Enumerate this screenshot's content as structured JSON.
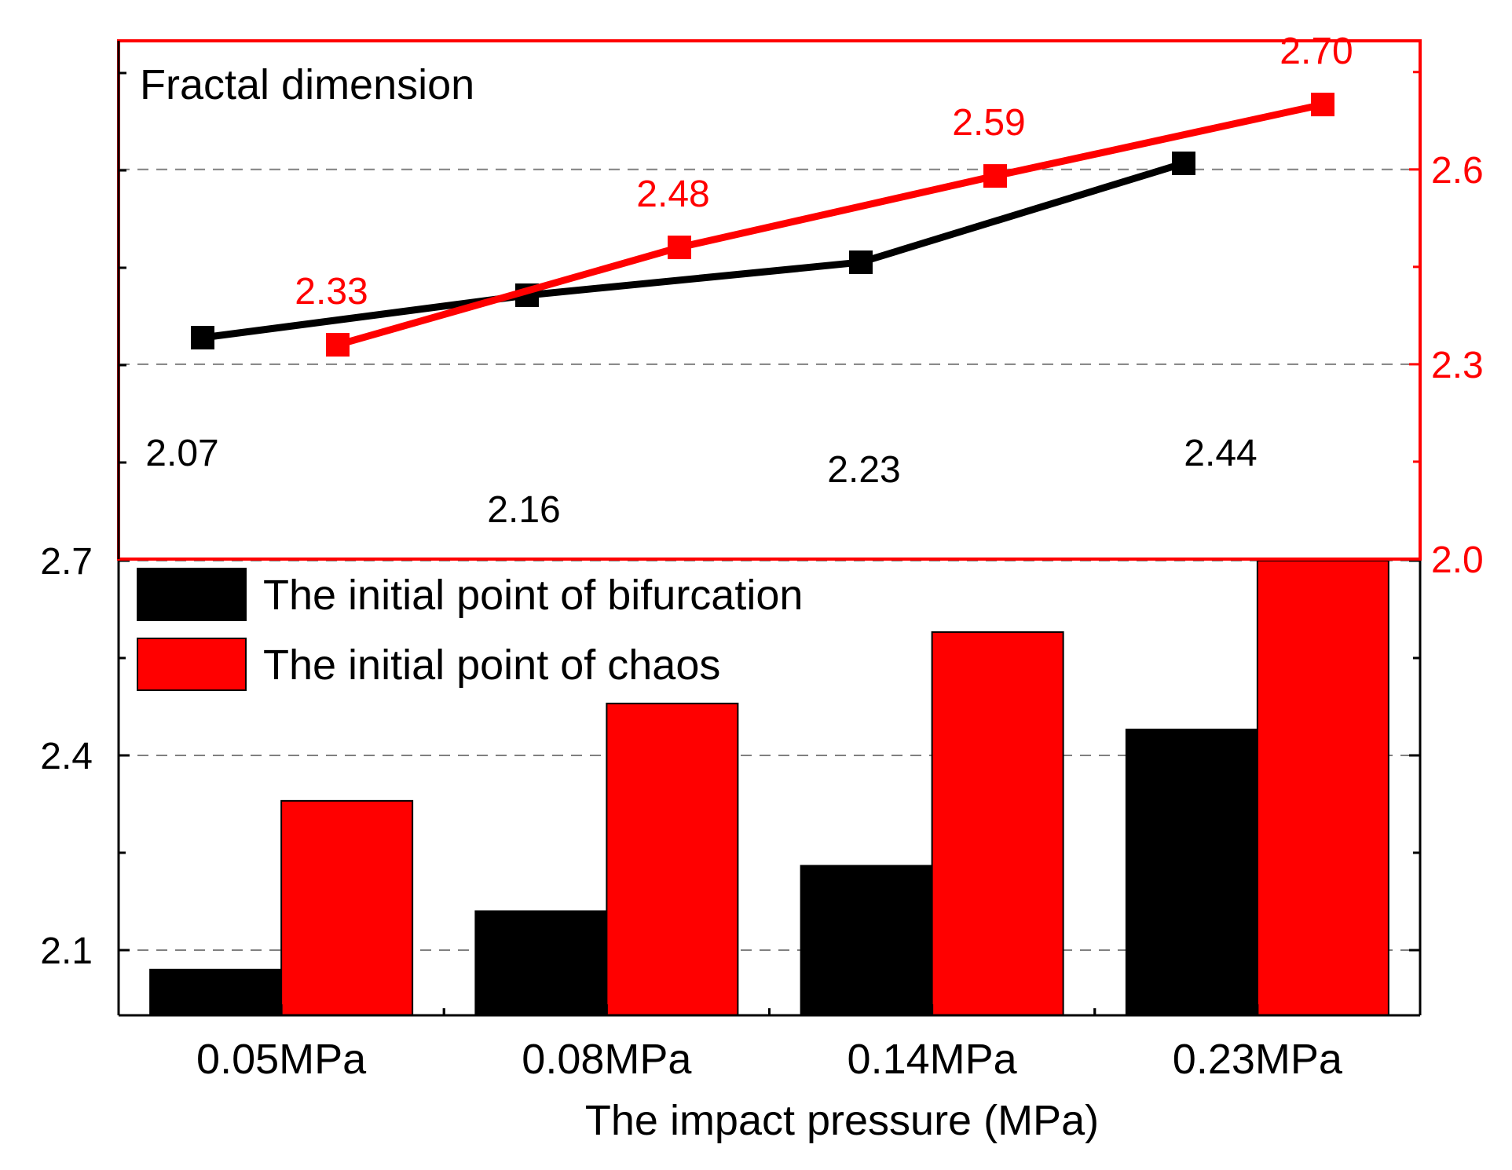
{
  "chart_data": [
    {
      "type": "bar",
      "categories": [
        "0.05MPa",
        "0.08MPa",
        "0.14MPa",
        "0.23MPa"
      ],
      "series": [
        {
          "name": "The initial point of bifurcation",
          "values": [
            2.07,
            2.16,
            2.23,
            2.44
          ],
          "color": "#000000"
        },
        {
          "name": "The initial point of chaos",
          "values": [
            2.33,
            2.48,
            2.59,
            2.7
          ],
          "color": "#ff0000"
        }
      ],
      "xlabel": "The impact pressure (MPa)",
      "ylabel": "",
      "ylim": [
        2.0,
        2.7
      ],
      "yticks": [
        "2.1",
        "2.4",
        "2.7"
      ],
      "grid": "dashed horizontal",
      "legend_position": "top-left"
    },
    {
      "type": "line",
      "title": "Fractal dimension",
      "categories": [
        "0.05MPa",
        "0.08MPa",
        "0.14MPa",
        "0.23MPa"
      ],
      "series": [
        {
          "name": "The initial point of bifurcation",
          "values": [
            2.07,
            2.16,
            2.23,
            2.44
          ],
          "labels": [
            "2.07",
            "2.16",
            "2.23",
            "2.44"
          ],
          "color": "#000000"
        },
        {
          "name": "The initial point of chaos",
          "values": [
            2.33,
            2.48,
            2.59,
            2.7
          ],
          "labels": [
            "2.33",
            "2.48",
            "2.59",
            "2.70"
          ],
          "color": "#ff0000"
        }
      ],
      "left_axis": {
        "ylim": [
          1.6,
          2.7
        ],
        "color": "#000000"
      },
      "right_axis": {
        "ylim": [
          2.0,
          2.75
        ],
        "yticks": [
          "2.0",
          "2.3",
          "2.6"
        ],
        "color": "#ff0000"
      },
      "grid": "dashed horizontal"
    }
  ]
}
